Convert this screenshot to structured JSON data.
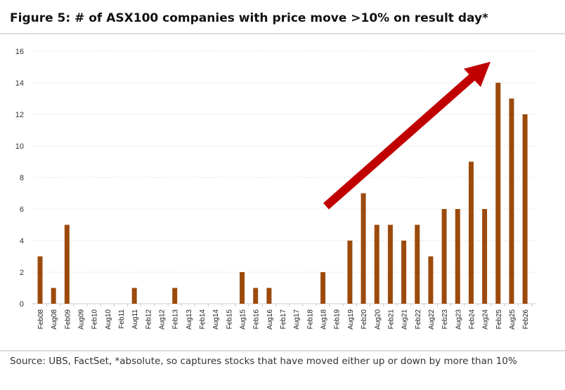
{
  "chart_data": {
    "type": "bar",
    "title": "Figure 5: # of ASX100 companies with price move >10% on result day*",
    "source": "Source: UBS, FactSet, *absolute, so captures stocks that have moved either up or down by more than 10%",
    "categories": [
      "Feb08",
      "Aug08",
      "Feb09",
      "Aug09",
      "Feb10",
      "Aug10",
      "Feb11",
      "Aug11",
      "Feb12",
      "Aug12",
      "Feb13",
      "Aug13",
      "Feb14",
      "Aug14",
      "Feb15",
      "Aug15",
      "Feb16",
      "Aug16",
      "Feb17",
      "Aug17",
      "Feb18",
      "Aug18",
      "Feb19",
      "Aug19",
      "Feb20",
      "Aug20",
      "Feb21",
      "Aug21",
      "Feb22",
      "Aug22",
      "Feb23",
      "Aug23",
      "Feb24",
      "Aug24",
      "Feb25",
      "Aug25",
      "Feb26"
    ],
    "values": [
      3,
      1,
      5,
      0,
      0,
      0,
      0,
      1,
      0,
      0,
      1,
      0,
      0,
      0,
      0,
      2,
      1,
      1,
      0,
      0,
      0,
      2,
      0,
      4,
      7,
      5,
      5,
      4,
      5,
      3,
      6,
      6,
      9,
      6,
      14,
      13,
      12
    ],
    "yticks": [
      0,
      2,
      4,
      6,
      8,
      10,
      12,
      14,
      16
    ],
    "ylim": [
      0,
      16
    ],
    "grid": true,
    "bar_color": "#9c4a0c",
    "annotation": {
      "type": "arrow",
      "color": "#c00000",
      "direction": "up-right"
    }
  }
}
